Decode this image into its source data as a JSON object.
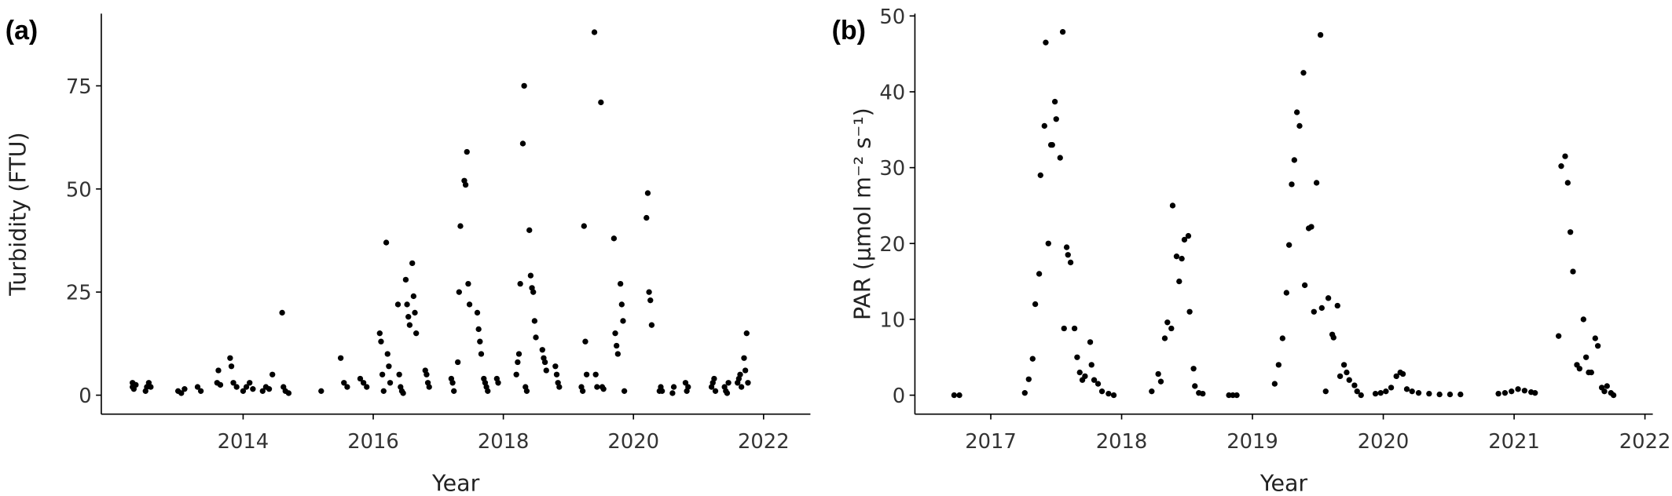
{
  "chart_data": [
    {
      "type": "scatter",
      "panel_label": "(a)",
      "x_label": "Year",
      "y_label": "Turbidity (FTU)",
      "color": "#000000",
      "xlim": [
        2011.82,
        2022.72
      ],
      "xticks": [
        2014,
        2016,
        2018,
        2020,
        2022
      ],
      "ylim": [
        -4.6,
        92.5
      ],
      "yticks": [
        0,
        25,
        50,
        75
      ],
      "x": [
        2012.3,
        2012.3,
        2012.32,
        2012.35,
        2012.5,
        2012.52,
        2012.55,
        2012.58,
        2013.0,
        2013.05,
        2013.1,
        2013.3,
        2013.35,
        2013.6,
        2013.62,
        2013.65,
        2013.8,
        2013.82,
        2013.85,
        2013.9,
        2014.0,
        2014.05,
        2014.1,
        2014.15,
        2014.3,
        2014.35,
        2014.4,
        2014.45,
        2014.6,
        2014.62,
        2014.65,
        2014.7,
        2015.2,
        2015.5,
        2015.55,
        2015.6,
        2015.8,
        2015.85,
        2015.9,
        2016.1,
        2016.12,
        2016.14,
        2016.16,
        2016.2,
        2016.22,
        2016.24,
        2016.26,
        2016.38,
        2016.4,
        2016.42,
        2016.44,
        2016.46,
        2016.5,
        2016.52,
        2016.54,
        2016.56,
        2016.6,
        2016.62,
        2016.64,
        2016.66,
        2016.8,
        2016.82,
        2016.84,
        2016.86,
        2017.2,
        2017.22,
        2017.24,
        2017.3,
        2017.32,
        2017.34,
        2017.4,
        2017.42,
        2017.44,
        2017.46,
        2017.48,
        2017.6,
        2017.62,
        2017.64,
        2017.66,
        2017.7,
        2017.72,
        2017.74,
        2017.76,
        2017.9,
        2017.92,
        2018.2,
        2018.22,
        2018.24,
        2018.26,
        2018.3,
        2018.32,
        2018.34,
        2018.36,
        2018.4,
        2018.42,
        2018.44,
        2018.46,
        2018.48,
        2018.5,
        2018.6,
        2018.62,
        2018.64,
        2018.66,
        2018.8,
        2018.82,
        2018.84,
        2018.86,
        2019.2,
        2019.22,
        2019.24,
        2019.26,
        2019.28,
        2019.4,
        2019.42,
        2019.44,
        2019.5,
        2019.52,
        2019.54,
        2019.7,
        2019.72,
        2019.74,
        2019.76,
        2019.8,
        2019.82,
        2019.84,
        2019.86,
        2020.2,
        2020.22,
        2020.24,
        2020.26,
        2020.28,
        2020.4,
        2020.42,
        2020.44,
        2020.6,
        2020.62,
        2020.8,
        2020.82,
        2020.84,
        2021.2,
        2021.22,
        2021.24,
        2021.26,
        2021.4,
        2021.42,
        2021.44,
        2021.46,
        2021.6,
        2021.62,
        2021.64,
        2021.66,
        2021.7,
        2021.72,
        2021.74,
        2021.76
      ],
      "values": [
        2,
        3,
        1.5,
        2.5,
        1,
        2,
        3,
        2,
        1,
        0.5,
        1.5,
        2,
        1,
        3,
        6,
        2.5,
        9,
        7,
        3,
        2,
        1,
        2,
        3,
        1.5,
        1,
        2,
        1.5,
        5,
        20,
        2,
        1,
        0.5,
        1,
        9,
        3,
        2,
        4,
        3,
        2,
        15,
        13,
        5,
        1,
        37,
        10,
        7,
        3,
        22,
        5,
        2,
        1,
        0.5,
        28,
        22,
        19,
        17,
        32,
        24,
        20,
        15,
        6,
        5,
        3,
        2,
        4,
        3,
        1,
        8,
        25,
        41,
        52,
        51,
        59,
        27,
        22,
        20,
        16,
        13,
        10,
        4,
        3,
        2,
        1,
        4,
        3,
        5,
        8,
        10,
        27,
        61,
        75,
        2,
        1,
        40,
        29,
        26,
        25,
        18,
        14,
        11,
        9,
        8,
        6,
        7,
        5,
        3,
        2,
        2,
        1,
        41,
        13,
        5,
        88,
        5,
        2,
        71,
        2,
        1.5,
        38,
        15,
        12,
        10,
        27,
        22,
        18,
        1,
        43,
        49,
        25,
        23,
        17,
        1,
        2,
        1,
        0.5,
        2,
        3,
        1,
        2,
        2,
        3,
        4,
        1,
        2,
        1,
        0.5,
        3,
        3,
        4,
        5,
        2,
        9,
        6,
        15,
        3
      ]
    },
    {
      "type": "scatter",
      "panel_label": "(b)",
      "x_label": "Year",
      "y_label": "PAR (µmol m⁻² s⁻¹)",
      "color": "#000000",
      "xlim": [
        2016.42,
        2022.06
      ],
      "xticks": [
        2017,
        2018,
        2019,
        2020,
        2021,
        2022
      ],
      "ylim": [
        -2.5,
        50.3
      ],
      "yticks": [
        0,
        10,
        20,
        30,
        40,
        50
      ],
      "x": [
        2016.72,
        2016.76,
        2017.26,
        2017.29,
        2017.32,
        2017.34,
        2017.37,
        2017.38,
        2017.41,
        2017.42,
        2017.44,
        2017.46,
        2017.47,
        2017.49,
        2017.5,
        2017.53,
        2017.55,
        2017.56,
        2017.58,
        2017.59,
        2017.61,
        2017.64,
        2017.66,
        2017.68,
        2017.7,
        2017.72,
        2017.76,
        2017.77,
        2017.79,
        2017.82,
        2017.85,
        2017.9,
        2017.94,
        2018.23,
        2018.28,
        2018.3,
        2018.33,
        2018.35,
        2018.38,
        2018.39,
        2018.42,
        2018.44,
        2018.46,
        2018.48,
        2018.51,
        2018.52,
        2018.55,
        2018.56,
        2018.59,
        2018.62,
        2018.82,
        2018.85,
        2018.88,
        2019.17,
        2019.2,
        2019.23,
        2019.26,
        2019.28,
        2019.3,
        2019.32,
        2019.34,
        2019.36,
        2019.39,
        2019.4,
        2019.43,
        2019.45,
        2019.47,
        2019.49,
        2019.52,
        2019.53,
        2019.56,
        2019.58,
        2019.61,
        2019.62,
        2019.65,
        2019.67,
        2019.7,
        2019.72,
        2019.74,
        2019.78,
        2019.8,
        2019.83,
        2019.94,
        2019.98,
        2020.02,
        2020.06,
        2020.1,
        2020.13,
        2020.15,
        2020.18,
        2020.22,
        2020.27,
        2020.35,
        2020.43,
        2020.51,
        2020.59,
        2020.88,
        2020.93,
        2020.98,
        2021.03,
        2021.08,
        2021.13,
        2021.16,
        2021.34,
        2021.36,
        2021.39,
        2021.41,
        2021.43,
        2021.45,
        2021.48,
        2021.5,
        2021.53,
        2021.55,
        2021.57,
        2021.59,
        2021.62,
        2021.64,
        2021.67,
        2021.69,
        2021.71,
        2021.74,
        2021.76
      ],
      "values": [
        0,
        0,
        0.3,
        2.1,
        4.8,
        12,
        16,
        29,
        35.5,
        46.5,
        20,
        33,
        33,
        38.7,
        36.4,
        31.3,
        47.9,
        8.8,
        19.5,
        18.5,
        17.5,
        8.8,
        5,
        3,
        2,
        2.5,
        7,
        4,
        2,
        1.5,
        0.5,
        0.2,
        0,
        0.5,
        2.8,
        1.8,
        7.5,
        9.6,
        8.8,
        25,
        18.3,
        15,
        18,
        20.5,
        21,
        11,
        3.5,
        1.2,
        0.3,
        0.2,
        0,
        0,
        0,
        1.5,
        4,
        7.5,
        13.5,
        19.8,
        27.8,
        31,
        37.3,
        35.5,
        42.5,
        14.5,
        22,
        22.2,
        11,
        28,
        47.5,
        11.5,
        0.5,
        12.8,
        8,
        7.6,
        11.8,
        2.5,
        4,
        3,
        2,
        1.3,
        0.5,
        0,
        0.2,
        0.3,
        0.5,
        1,
        2.5,
        3,
        2.8,
        0.8,
        0.5,
        0.3,
        0.2,
        0.1,
        0.1,
        0.1,
        0.2,
        0.3,
        0.5,
        0.8,
        0.6,
        0.4,
        0.3,
        7.8,
        30.2,
        31.5,
        28,
        21.5,
        16.3,
        4,
        3.5,
        10,
        5,
        3,
        3,
        7.5,
        6.5,
        1,
        0.5,
        1.2,
        0.3,
        0
      ]
    }
  ]
}
